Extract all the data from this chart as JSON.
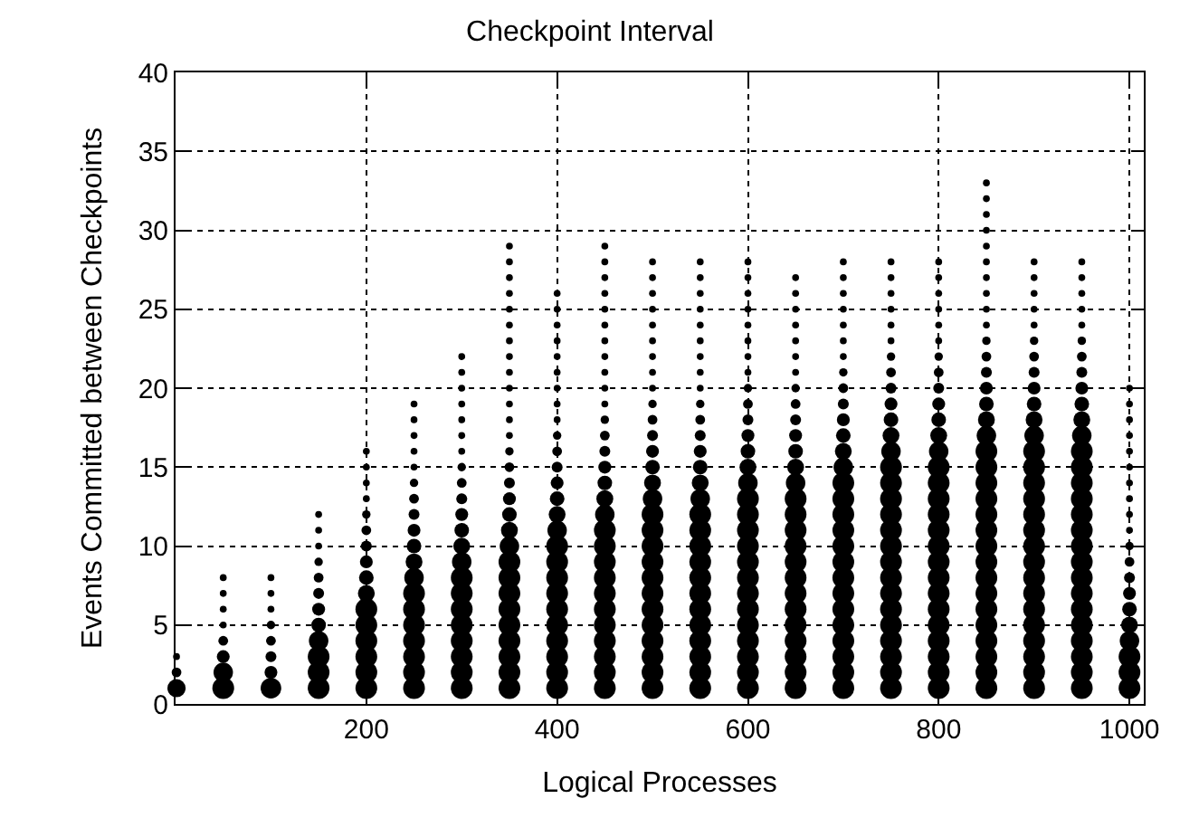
{
  "chart_data": {
    "type": "bubble",
    "title": "Checkpoint Interval",
    "xlabel": "Logical Processes",
    "ylabel": "Events Committed between Checkpoints",
    "xlim": [
      0,
      1015
    ],
    "xticks": [
      200,
      400,
      600,
      800,
      1000
    ],
    "ylim": [
      0,
      40
    ],
    "yticks": [
      0,
      5,
      10,
      15,
      20,
      25,
      30,
      35,
      40
    ],
    "grid": true,
    "marker": "circle",
    "series": [
      {
        "color": "#000000",
        "x": [
          1,
          1,
          1
        ],
        "values": [
          1,
          2,
          3
        ],
        "sizes": [
          0.7,
          0.2,
          0.1
        ]
      },
      {
        "color": "#000000",
        "x": [
          50,
          50,
          50,
          50,
          50,
          50,
          50,
          50
        ],
        "values": [
          1,
          2,
          3,
          4,
          5,
          6,
          7,
          8
        ],
        "sizes": [
          1,
          0.8,
          0.35,
          0.2,
          0.1,
          0.1,
          0.1,
          0.1
        ]
      },
      {
        "color": "#000000",
        "x": [
          100,
          100,
          100,
          100,
          100,
          100,
          100,
          100
        ],
        "values": [
          1,
          2,
          3,
          4,
          5,
          6,
          7,
          8
        ],
        "sizes": [
          0.9,
          0.35,
          0.25,
          0.2,
          0.15,
          0.1,
          0.1,
          0.1
        ]
      },
      {
        "color": "#000000",
        "x": [
          150,
          150,
          150,
          150,
          150,
          150,
          150,
          150,
          150,
          150,
          150,
          150
        ],
        "values": [
          1,
          2,
          3,
          4,
          5,
          6,
          7,
          8,
          9,
          10,
          11,
          12
        ],
        "sizes": [
          1,
          1,
          1,
          0.8,
          0.45,
          0.35,
          0.25,
          0.2,
          0.15,
          0.1,
          0.1,
          0.1
        ]
      },
      {
        "color": "#000000",
        "x": [
          200,
          200,
          200,
          200,
          200,
          200,
          200,
          200,
          200,
          200,
          200,
          200,
          200,
          200,
          200,
          200
        ],
        "values": [
          1,
          2,
          3,
          4,
          5,
          6,
          7,
          8,
          9,
          10,
          11,
          12,
          13,
          14,
          15,
          16
        ],
        "sizes": [
          1,
          1,
          1,
          1,
          1,
          1,
          0.6,
          0.45,
          0.35,
          0.25,
          0.2,
          0.15,
          0.1,
          0.1,
          0.1,
          0.1
        ]
      },
      {
        "color": "#000000",
        "x": [
          250,
          250,
          250,
          250,
          250,
          250,
          250,
          250,
          250,
          250,
          250,
          250,
          250,
          250,
          250,
          250,
          250,
          250,
          250
        ],
        "values": [
          1,
          2,
          3,
          4,
          5,
          6,
          7,
          8,
          9,
          10,
          11,
          12,
          13,
          14,
          15,
          16,
          17,
          18,
          19
        ],
        "sizes": [
          1,
          1,
          1,
          1,
          1,
          1,
          1,
          0.8,
          0.6,
          0.45,
          0.35,
          0.25,
          0.2,
          0.15,
          0.1,
          0.1,
          0.1,
          0.1,
          0.1
        ]
      },
      {
        "color": "#000000",
        "x": [
          300,
          300,
          300,
          300,
          300,
          300,
          300,
          300,
          300,
          300,
          300,
          300,
          300,
          300,
          300,
          300,
          300,
          300,
          300,
          300,
          300,
          300
        ],
        "values": [
          1,
          2,
          3,
          4,
          5,
          6,
          7,
          8,
          9,
          10,
          11,
          12,
          13,
          14,
          15,
          16,
          17,
          18,
          19,
          20,
          21,
          22
        ],
        "sizes": [
          1,
          1,
          1,
          1,
          1,
          1,
          1,
          1,
          0.8,
          0.6,
          0.45,
          0.35,
          0.25,
          0.2,
          0.15,
          0.1,
          0.1,
          0.1,
          0.1,
          0.1,
          0.1,
          0.1
        ]
      },
      {
        "color": "#000000",
        "x": [
          350,
          350,
          350,
          350,
          350,
          350,
          350,
          350,
          350,
          350,
          350,
          350,
          350,
          350,
          350,
          350,
          350,
          350,
          350,
          350,
          350,
          350,
          350,
          350,
          350,
          350,
          350,
          350,
          350
        ],
        "values": [
          1,
          2,
          3,
          4,
          5,
          6,
          7,
          8,
          9,
          10,
          11,
          12,
          13,
          14,
          15,
          16,
          17,
          18,
          19,
          20,
          21,
          22,
          23,
          24,
          25,
          26,
          27,
          28,
          29
        ],
        "sizes": [
          1,
          1,
          1,
          1,
          1,
          1,
          1,
          1,
          1,
          0.8,
          0.6,
          0.45,
          0.35,
          0.25,
          0.2,
          0.15,
          0.1,
          0.1,
          0.1,
          0.1,
          0.1,
          0.1,
          0.1,
          0.1,
          0.1,
          0.1,
          0.1,
          0.1,
          0.1
        ]
      },
      {
        "color": "#000000",
        "x": [
          400,
          400,
          400,
          400,
          400,
          400,
          400,
          400,
          400,
          400,
          400,
          400,
          400,
          400,
          400,
          400,
          400,
          400,
          400,
          400,
          400,
          400,
          400,
          400,
          400,
          400
        ],
        "values": [
          1,
          2,
          3,
          4,
          5,
          6,
          7,
          8,
          9,
          10,
          11,
          12,
          13,
          14,
          15,
          16,
          17,
          18,
          19,
          20,
          21,
          22,
          23,
          24,
          25,
          26
        ],
        "sizes": [
          1,
          1,
          1,
          1,
          1,
          1,
          1,
          1,
          1,
          1,
          0.8,
          0.6,
          0.45,
          0.35,
          0.25,
          0.2,
          0.15,
          0.1,
          0.1,
          0.1,
          0.1,
          0.1,
          0.1,
          0.1,
          0.1,
          0.1
        ]
      },
      {
        "color": "#000000",
        "x": [
          450,
          450,
          450,
          450,
          450,
          450,
          450,
          450,
          450,
          450,
          450,
          450,
          450,
          450,
          450,
          450,
          450,
          450,
          450,
          450,
          450,
          450,
          450,
          450,
          450,
          450,
          450,
          450,
          450
        ],
        "values": [
          1,
          2,
          3,
          4,
          5,
          6,
          7,
          8,
          9,
          10,
          11,
          12,
          13,
          14,
          15,
          16,
          17,
          18,
          19,
          20,
          21,
          22,
          23,
          24,
          25,
          26,
          27,
          28,
          29
        ],
        "sizes": [
          1,
          1,
          1,
          1,
          1,
          1,
          1,
          1,
          1,
          1,
          1,
          0.8,
          0.6,
          0.45,
          0.35,
          0.25,
          0.2,
          0.15,
          0.1,
          0.1,
          0.1,
          0.1,
          0.1,
          0.1,
          0.1,
          0.1,
          0.1,
          0.1,
          0.1
        ]
      },
      {
        "color": "#000000",
        "x": [
          500,
          500,
          500,
          500,
          500,
          500,
          500,
          500,
          500,
          500,
          500,
          500,
          500,
          500,
          500,
          500,
          500,
          500,
          500,
          500,
          500,
          500,
          500,
          500,
          500,
          500,
          500,
          500
        ],
        "values": [
          1,
          2,
          3,
          4,
          5,
          6,
          7,
          8,
          9,
          10,
          11,
          12,
          13,
          14,
          15,
          16,
          17,
          18,
          19,
          20,
          21,
          22,
          23,
          24,
          25,
          26,
          27,
          28
        ],
        "sizes": [
          1,
          1,
          1,
          1,
          1,
          1,
          1,
          1,
          1,
          1,
          1,
          1,
          0.8,
          0.6,
          0.45,
          0.35,
          0.25,
          0.2,
          0.15,
          0.1,
          0.1,
          0.1,
          0.1,
          0.1,
          0.1,
          0.1,
          0.1,
          0.1
        ]
      },
      {
        "color": "#000000",
        "x": [
          550,
          550,
          550,
          550,
          550,
          550,
          550,
          550,
          550,
          550,
          550,
          550,
          550,
          550,
          550,
          550,
          550,
          550,
          550,
          550,
          550,
          550,
          550,
          550,
          550,
          550,
          550,
          550
        ],
        "values": [
          1,
          2,
          3,
          4,
          5,
          6,
          7,
          8,
          9,
          10,
          11,
          12,
          13,
          14,
          15,
          16,
          17,
          18,
          19,
          20,
          21,
          22,
          23,
          24,
          25,
          26,
          27,
          28
        ],
        "sizes": [
          1,
          1,
          1,
          1,
          1,
          1,
          1,
          1,
          1,
          1,
          1,
          1,
          0.8,
          0.6,
          0.45,
          0.35,
          0.25,
          0.2,
          0.15,
          0.1,
          0.1,
          0.1,
          0.1,
          0.1,
          0.1,
          0.1,
          0.1,
          0.1
        ]
      },
      {
        "color": "#000000",
        "x": [
          600,
          600,
          600,
          600,
          600,
          600,
          600,
          600,
          600,
          600,
          600,
          600,
          600,
          600,
          600,
          600,
          600,
          600,
          600,
          600,
          600,
          600,
          600,
          600,
          600,
          600,
          600,
          600
        ],
        "values": [
          1,
          2,
          3,
          4,
          5,
          6,
          7,
          8,
          9,
          10,
          11,
          12,
          13,
          14,
          15,
          16,
          17,
          18,
          19,
          20,
          21,
          22,
          23,
          24,
          25,
          26,
          27,
          28
        ],
        "sizes": [
          1,
          1,
          1,
          1,
          1,
          1,
          1,
          1,
          1,
          1,
          1,
          1,
          1,
          0.8,
          0.6,
          0.45,
          0.35,
          0.25,
          0.2,
          0.15,
          0.1,
          0.1,
          0.1,
          0.1,
          0.1,
          0.1,
          0.1,
          0.1
        ]
      },
      {
        "color": "#000000",
        "x": [
          650,
          650,
          650,
          650,
          650,
          650,
          650,
          650,
          650,
          650,
          650,
          650,
          650,
          650,
          650,
          650,
          650,
          650,
          650,
          650,
          650,
          650,
          650,
          650,
          650,
          650,
          650
        ],
        "values": [
          1,
          2,
          3,
          4,
          5,
          6,
          7,
          8,
          9,
          10,
          11,
          12,
          13,
          14,
          15,
          16,
          17,
          18,
          19,
          20,
          21,
          22,
          23,
          24,
          25,
          26,
          27
        ],
        "sizes": [
          1,
          1,
          1,
          1,
          1,
          1,
          1,
          1,
          1,
          1,
          1,
          1,
          1,
          0.8,
          0.6,
          0.45,
          0.35,
          0.25,
          0.2,
          0.15,
          0.1,
          0.1,
          0.1,
          0.1,
          0.1,
          0.1,
          0.1
        ]
      },
      {
        "color": "#000000",
        "x": [
          700,
          700,
          700,
          700,
          700,
          700,
          700,
          700,
          700,
          700,
          700,
          700,
          700,
          700,
          700,
          700,
          700,
          700,
          700,
          700,
          700,
          700,
          700,
          700,
          700,
          700,
          700,
          700
        ],
        "values": [
          1,
          2,
          3,
          4,
          5,
          6,
          7,
          8,
          9,
          10,
          11,
          12,
          13,
          14,
          15,
          16,
          17,
          18,
          19,
          20,
          21,
          22,
          23,
          24,
          25,
          26,
          27,
          28
        ],
        "sizes": [
          1,
          1,
          1,
          1,
          1,
          1,
          1,
          1,
          1,
          1,
          1,
          1,
          1,
          1,
          0.8,
          0.6,
          0.45,
          0.35,
          0.25,
          0.2,
          0.15,
          0.1,
          0.1,
          0.1,
          0.1,
          0.1,
          0.1,
          0.1
        ]
      },
      {
        "color": "#000000",
        "x": [
          750,
          750,
          750,
          750,
          750,
          750,
          750,
          750,
          750,
          750,
          750,
          750,
          750,
          750,
          750,
          750,
          750,
          750,
          750,
          750,
          750,
          750,
          750,
          750,
          750,
          750,
          750,
          750
        ],
        "values": [
          1,
          2,
          3,
          4,
          5,
          6,
          7,
          8,
          9,
          10,
          11,
          12,
          13,
          14,
          15,
          16,
          17,
          18,
          19,
          20,
          21,
          22,
          23,
          24,
          25,
          26,
          27,
          28
        ],
        "sizes": [
          1,
          1,
          1,
          1,
          1,
          1,
          1,
          1,
          1,
          1,
          1,
          1,
          1,
          1,
          1,
          0.8,
          0.6,
          0.45,
          0.35,
          0.25,
          0.2,
          0.15,
          0.1,
          0.1,
          0.1,
          0.1,
          0.1,
          0.1
        ]
      },
      {
        "color": "#000000",
        "x": [
          800,
          800,
          800,
          800,
          800,
          800,
          800,
          800,
          800,
          800,
          800,
          800,
          800,
          800,
          800,
          800,
          800,
          800,
          800,
          800,
          800,
          800,
          800,
          800,
          800,
          800,
          800,
          800
        ],
        "values": [
          1,
          2,
          3,
          4,
          5,
          6,
          7,
          8,
          9,
          10,
          11,
          12,
          13,
          14,
          15,
          16,
          17,
          18,
          19,
          20,
          21,
          22,
          23,
          24,
          25,
          26,
          27,
          28
        ],
        "sizes": [
          1,
          1,
          1,
          1,
          1,
          1,
          1,
          1,
          1,
          1,
          1,
          1,
          1,
          1,
          1,
          0.8,
          0.6,
          0.45,
          0.35,
          0.25,
          0.2,
          0.15,
          0.1,
          0.1,
          0.1,
          0.1,
          0.1,
          0.1
        ]
      },
      {
        "color": "#000000",
        "x": [
          850,
          850,
          850,
          850,
          850,
          850,
          850,
          850,
          850,
          850,
          850,
          850,
          850,
          850,
          850,
          850,
          850,
          850,
          850,
          850,
          850,
          850,
          850,
          850,
          850,
          850,
          850,
          850,
          850,
          850,
          850,
          850,
          850
        ],
        "values": [
          1,
          2,
          3,
          4,
          5,
          6,
          7,
          8,
          9,
          10,
          11,
          12,
          13,
          14,
          15,
          16,
          17,
          18,
          19,
          20,
          21,
          22,
          23,
          24,
          25,
          26,
          27,
          28,
          29,
          30,
          31,
          32,
          33
        ],
        "sizes": [
          1,
          1,
          1,
          1,
          1,
          1,
          1,
          1,
          1,
          1,
          1,
          1,
          1,
          1,
          1,
          1,
          0.8,
          0.6,
          0.45,
          0.35,
          0.25,
          0.2,
          0.15,
          0.1,
          0.1,
          0.1,
          0.1,
          0.1,
          0.1,
          0.1,
          0.1,
          0.1,
          0.1
        ]
      },
      {
        "color": "#000000",
        "x": [
          900,
          900,
          900,
          900,
          900,
          900,
          900,
          900,
          900,
          900,
          900,
          900,
          900,
          900,
          900,
          900,
          900,
          900,
          900,
          900,
          900,
          900,
          900,
          900,
          900,
          900,
          900,
          900
        ],
        "values": [
          1,
          2,
          3,
          4,
          5,
          6,
          7,
          8,
          9,
          10,
          11,
          12,
          13,
          14,
          15,
          16,
          17,
          18,
          19,
          20,
          21,
          22,
          23,
          24,
          25,
          26,
          27,
          28
        ],
        "sizes": [
          1,
          1,
          1,
          1,
          1,
          1,
          1,
          1,
          1,
          1,
          1,
          1,
          1,
          1,
          1,
          1,
          0.8,
          0.6,
          0.45,
          0.35,
          0.25,
          0.2,
          0.15,
          0.1,
          0.1,
          0.1,
          0.1,
          0.1
        ]
      },
      {
        "color": "#000000",
        "x": [
          950,
          950,
          950,
          950,
          950,
          950,
          950,
          950,
          950,
          950,
          950,
          950,
          950,
          950,
          950,
          950,
          950,
          950,
          950,
          950,
          950,
          950,
          950,
          950,
          950,
          950,
          950,
          950
        ],
        "values": [
          1,
          2,
          3,
          4,
          5,
          6,
          7,
          8,
          9,
          10,
          11,
          12,
          13,
          14,
          15,
          16,
          17,
          18,
          19,
          20,
          21,
          22,
          23,
          24,
          25,
          26,
          27,
          28
        ],
        "sizes": [
          1,
          1,
          1,
          1,
          1,
          1,
          1,
          1,
          1,
          1,
          1,
          1,
          1,
          1,
          1,
          1,
          0.8,
          0.6,
          0.45,
          0.35,
          0.25,
          0.2,
          0.15,
          0.1,
          0.1,
          0.1,
          0.1,
          0.1
        ]
      },
      {
        "color": "#000000",
        "x": [
          1000,
          1000,
          1000,
          1000,
          1000,
          1000,
          1000,
          1000,
          1000,
          1000,
          1000,
          1000,
          1000,
          1000,
          1000,
          1000,
          1000,
          1000,
          1000,
          1000
        ],
        "values": [
          1,
          2,
          3,
          4,
          5,
          6,
          7,
          8,
          9,
          10,
          11,
          12,
          13,
          14,
          15,
          16,
          17,
          18,
          19,
          20
        ],
        "sizes": [
          1,
          1,
          1,
          0.8,
          0.6,
          0.45,
          0.35,
          0.25,
          0.2,
          0.15,
          0.1,
          0.1,
          0.1,
          0.1,
          0.1,
          0.1,
          0.1,
          0.1,
          0.1,
          0.1
        ]
      }
    ]
  }
}
